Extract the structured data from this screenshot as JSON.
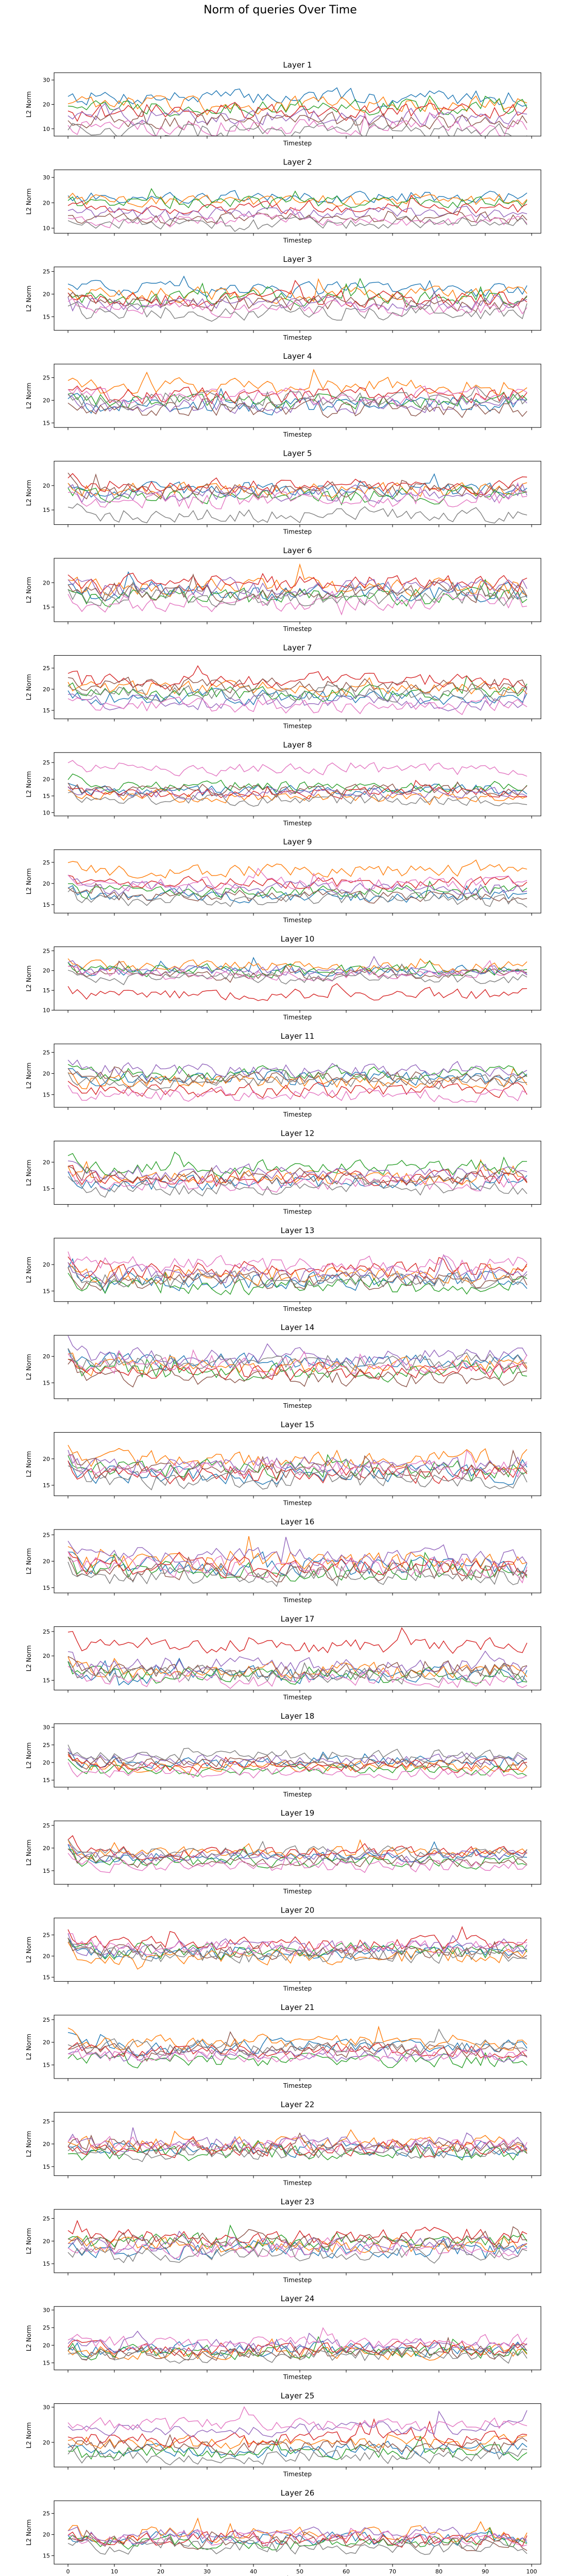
{
  "figure": {
    "suptitle": "Norm of queries Over Time",
    "colors": [
      "#1f77b4",
      "#ff7f0e",
      "#2ca02c",
      "#d62728",
      "#9467bd",
      "#8c564b",
      "#e377c2",
      "#7f7f7f"
    ],
    "xticks": [
      0,
      10,
      20,
      30,
      40,
      50,
      60,
      70,
      80,
      90,
      100
    ],
    "xlim": [
      -3,
      102
    ]
  },
  "chart_data": [
    {
      "type": "line",
      "title": "Layer 1",
      "xlabel": "Timestep",
      "ylabel": "L2 Norm",
      "ylim": [
        7,
        33
      ],
      "yticks": [
        10,
        20,
        30
      ],
      "x_range": [
        0,
        99
      ],
      "level": 16,
      "spread": 8.0,
      "noise": 3.0,
      "series_levels": [
        23,
        20,
        19,
        17,
        15,
        13,
        11,
        9
      ]
    },
    {
      "type": "line",
      "title": "Layer 2",
      "xlabel": "Timestep",
      "ylabel": "L2 Norm",
      "ylim": [
        8,
        33
      ],
      "yticks": [
        10,
        20,
        30
      ],
      "x_range": [
        0,
        99
      ],
      "level": 17,
      "spread": 8.0,
      "noise": 2.2,
      "series_levels": [
        22,
        21,
        20,
        18,
        16,
        14,
        13,
        12
      ]
    },
    {
      "type": "line",
      "title": "Layer 3",
      "xlabel": "Timestep",
      "ylabel": "L2 Norm",
      "ylim": [
        12,
        26
      ],
      "yticks": [
        15,
        20,
        25
      ],
      "x_range": [
        0,
        99
      ],
      "level": 19,
      "spread": 5.0,
      "noise": 1.5,
      "series_levels": [
        21,
        20,
        19,
        19,
        18,
        18,
        17,
        16
      ]
    },
    {
      "type": "line",
      "title": "Layer 4",
      "xlabel": "Timestep",
      "ylabel": "L2 Norm",
      "ylim": [
        14,
        28
      ],
      "yticks": [
        15,
        20,
        25
      ],
      "x_range": [
        0,
        99
      ],
      "level": 20,
      "spread": 5.0,
      "noise": 1.6,
      "series_levels": [
        19,
        23,
        20,
        21,
        19,
        18,
        21,
        20
      ]
    },
    {
      "type": "line",
      "title": "Layer 5",
      "xlabel": "Timestep",
      "ylabel": "L2 Norm",
      "ylim": [
        12,
        25
      ],
      "yticks": [
        15,
        20
      ],
      "x_range": [
        0,
        99
      ],
      "level": 18,
      "spread": 4.5,
      "noise": 1.4,
      "series_levels": [
        19,
        19,
        18,
        20,
        18,
        19,
        17,
        14
      ]
    },
    {
      "type": "line",
      "title": "Layer 6",
      "xlabel": "Timestep",
      "ylabel": "L2 Norm",
      "ylim": [
        12,
        25
      ],
      "yticks": [
        15,
        20
      ],
      "x_range": [
        0,
        99
      ],
      "level": 18,
      "spread": 4.5,
      "noise": 1.6,
      "series_levels": [
        18,
        19,
        17,
        20,
        19,
        18,
        16,
        17
      ]
    },
    {
      "type": "line",
      "title": "Layer 7",
      "xlabel": "Timestep",
      "ylabel": "L2 Norm",
      "ylim": [
        13,
        28
      ],
      "yticks": [
        15,
        20,
        25
      ],
      "x_range": [
        0,
        99
      ],
      "level": 19,
      "spread": 5.0,
      "noise": 1.6,
      "series_levels": [
        18,
        20,
        19,
        22,
        17,
        21,
        16,
        19
      ]
    },
    {
      "type": "line",
      "title": "Layer 8",
      "xlabel": "Timestep",
      "ylabel": "L2 Norm",
      "ylim": [
        9,
        28
      ],
      "yticks": [
        10,
        15,
        20,
        25
      ],
      "x_range": [
        0,
        99
      ],
      "level": 17,
      "spread": 6.0,
      "noise": 1.6,
      "series_levels": [
        17,
        15,
        18,
        16,
        16,
        17,
        23,
        14
      ]
    },
    {
      "type": "line",
      "title": "Layer 9",
      "xlabel": "Timestep",
      "ylabel": "L2 Norm",
      "ylim": [
        13,
        28
      ],
      "yticks": [
        15,
        20,
        25
      ],
      "x_range": [
        0,
        99
      ],
      "level": 18,
      "spread": 5.0,
      "noise": 1.4,
      "series_levels": [
        17,
        23,
        18,
        20,
        19,
        17,
        20,
        16
      ]
    },
    {
      "type": "line",
      "title": "Layer 10",
      "xlabel": "Timestep",
      "ylabel": "L2 Norm",
      "ylim": [
        10,
        26
      ],
      "yticks": [
        10,
        15,
        20,
        25
      ],
      "x_range": [
        0,
        99
      ],
      "level": 19,
      "spread": 4.5,
      "noise": 1.3,
      "series_levels": [
        20,
        21,
        20,
        14,
        20,
        19,
        19,
        18
      ]
    },
    {
      "type": "line",
      "title": "Layer 11",
      "xlabel": "Timestep",
      "ylabel": "L2 Norm",
      "ylim": [
        12,
        27
      ],
      "yticks": [
        15,
        20,
        25
      ],
      "x_range": [
        0,
        99
      ],
      "level": 18,
      "spread": 5.0,
      "noise": 1.5,
      "series_levels": [
        19,
        18,
        20,
        16,
        21,
        19,
        15,
        18
      ]
    },
    {
      "type": "line",
      "title": "Layer 12",
      "xlabel": "Timestep",
      "ylabel": "L2 Norm",
      "ylim": [
        12,
        24
      ],
      "yticks": [
        15,
        20
      ],
      "x_range": [
        0,
        99
      ],
      "level": 17,
      "spread": 4.0,
      "noise": 1.3,
      "series_levels": [
        16,
        17,
        19,
        17,
        18,
        17,
        16,
        15
      ]
    },
    {
      "type": "line",
      "title": "Layer 13",
      "xlabel": "Timestep",
      "ylabel": "L2 Norm",
      "ylim": [
        13,
        25
      ],
      "yticks": [
        15,
        20
      ],
      "x_range": [
        0,
        99
      ],
      "level": 18,
      "spread": 4.0,
      "noise": 1.5,
      "series_levels": [
        17,
        18,
        16,
        19,
        18,
        17,
        20,
        17
      ]
    },
    {
      "type": "line",
      "title": "Layer 14",
      "xlabel": "Timestep",
      "ylabel": "L2 Norm",
      "ylim": [
        12,
        24
      ],
      "yticks": [
        15,
        20
      ],
      "x_range": [
        0,
        99
      ],
      "level": 18,
      "spread": 4.0,
      "noise": 1.4,
      "series_levels": [
        19,
        18,
        17,
        17,
        20,
        16,
        18,
        19
      ]
    },
    {
      "type": "line",
      "title": "Layer 15",
      "xlabel": "Timestep",
      "ylabel": "L2 Norm",
      "ylim": [
        13,
        25
      ],
      "yticks": [
        15,
        20
      ],
      "x_range": [
        0,
        99
      ],
      "level": 18,
      "spread": 4.0,
      "noise": 1.5,
      "series_levels": [
        17,
        20,
        18,
        17,
        19,
        18,
        18,
        16
      ]
    },
    {
      "type": "line",
      "title": "Layer 16",
      "xlabel": "Timestep",
      "ylabel": "L2 Norm",
      "ylim": [
        14,
        26
      ],
      "yticks": [
        15,
        20,
        25
      ],
      "x_range": [
        0,
        99
      ],
      "level": 19,
      "spread": 4.0,
      "noise": 1.6,
      "series_levels": [
        19,
        20,
        18,
        19,
        21,
        18,
        19,
        17
      ]
    },
    {
      "type": "line",
      "title": "Layer 17",
      "xlabel": "Timestep",
      "ylabel": "L2 Norm",
      "ylim": [
        13,
        26
      ],
      "yticks": [
        15,
        20,
        25
      ],
      "x_range": [
        0,
        99
      ],
      "level": 16,
      "spread": 4.5,
      "noise": 1.5,
      "series_levels": [
        16,
        17,
        16,
        22,
        18,
        17,
        15,
        16
      ]
    },
    {
      "type": "line",
      "title": "Layer 18",
      "xlabel": "Timestep",
      "ylabel": "L2 Norm",
      "ylim": [
        13,
        31
      ],
      "yticks": [
        15,
        20,
        25,
        30
      ],
      "x_range": [
        0,
        99
      ],
      "level": 19,
      "spread": 5.0,
      "noise": 1.5,
      "series_levels": [
        20,
        19,
        18,
        19,
        21,
        20,
        17,
        22
      ]
    },
    {
      "type": "line",
      "title": "Layer 19",
      "xlabel": "Timestep",
      "ylabel": "L2 Norm",
      "ylim": [
        12,
        26
      ],
      "yticks": [
        15,
        20,
        25
      ],
      "x_range": [
        0,
        99
      ],
      "level": 18,
      "spread": 4.0,
      "noise": 1.2,
      "series_levels": [
        18,
        19,
        17,
        19,
        18,
        17,
        16,
        19
      ]
    },
    {
      "type": "line",
      "title": "Layer 20",
      "xlabel": "Timestep",
      "ylabel": "L2 Norm",
      "ylim": [
        14,
        29
      ],
      "yticks": [
        15,
        20,
        25
      ],
      "x_range": [
        0,
        99
      ],
      "level": 21,
      "spread": 4.5,
      "noise": 1.6,
      "series_levels": [
        21,
        20,
        21,
        23,
        22,
        21,
        22,
        20
      ]
    },
    {
      "type": "line",
      "title": "Layer 21",
      "xlabel": "Timestep",
      "ylabel": "L2 Norm",
      "ylim": [
        12,
        26
      ],
      "yticks": [
        15,
        20,
        25
      ],
      "x_range": [
        0,
        99
      ],
      "level": 18,
      "spread": 4.5,
      "noise": 1.4,
      "series_levels": [
        19,
        20,
        16,
        18,
        17,
        18,
        17,
        19
      ]
    },
    {
      "type": "line",
      "title": "Layer 22",
      "xlabel": "Timestep",
      "ylabel": "L2 Norm",
      "ylim": [
        13,
        27
      ],
      "yticks": [
        15,
        20,
        25
      ],
      "x_range": [
        0,
        99
      ],
      "level": 19,
      "spread": 4.0,
      "noise": 1.5,
      "series_levels": [
        19,
        20,
        18,
        19,
        20,
        19,
        20,
        18
      ]
    },
    {
      "type": "line",
      "title": "Layer 23",
      "xlabel": "Timestep",
      "ylabel": "L2 Norm",
      "ylim": [
        13,
        27
      ],
      "yticks": [
        15,
        20,
        25
      ],
      "x_range": [
        0,
        99
      ],
      "level": 19,
      "spread": 4.0,
      "noise": 1.6,
      "series_levels": [
        18,
        19,
        20,
        21,
        19,
        20,
        18,
        17
      ]
    },
    {
      "type": "line",
      "title": "Layer 24",
      "xlabel": "Timestep",
      "ylabel": "L2 Norm",
      "ylim": [
        13,
        31
      ],
      "yticks": [
        15,
        20,
        25,
        30
      ],
      "x_range": [
        0,
        99
      ],
      "level": 18,
      "spread": 5.0,
      "noise": 1.8,
      "series_levels": [
        19,
        18,
        18,
        19,
        20,
        18,
        21,
        17
      ]
    },
    {
      "type": "line",
      "title": "Layer 25",
      "xlabel": "Timestep",
      "ylabel": "L2 Norm",
      "ylim": [
        13,
        31
      ],
      "yticks": [
        20,
        30
      ],
      "x_range": [
        0,
        99
      ],
      "level": 19,
      "spread": 6.0,
      "noise": 1.8,
      "series_levels": [
        18,
        20,
        17,
        21,
        24,
        19,
        25,
        16
      ]
    },
    {
      "type": "line",
      "title": "Layer 26",
      "xlabel": "Timestep",
      "ylabel": "L2 Norm",
      "ylim": [
        13,
        28
      ],
      "yticks": [
        15,
        20,
        25
      ],
      "x_range": [
        0,
        99
      ],
      "level": 19,
      "spread": 4.0,
      "noise": 1.5,
      "series_levels": [
        19,
        20,
        18,
        19,
        20,
        18,
        19,
        17
      ]
    }
  ]
}
